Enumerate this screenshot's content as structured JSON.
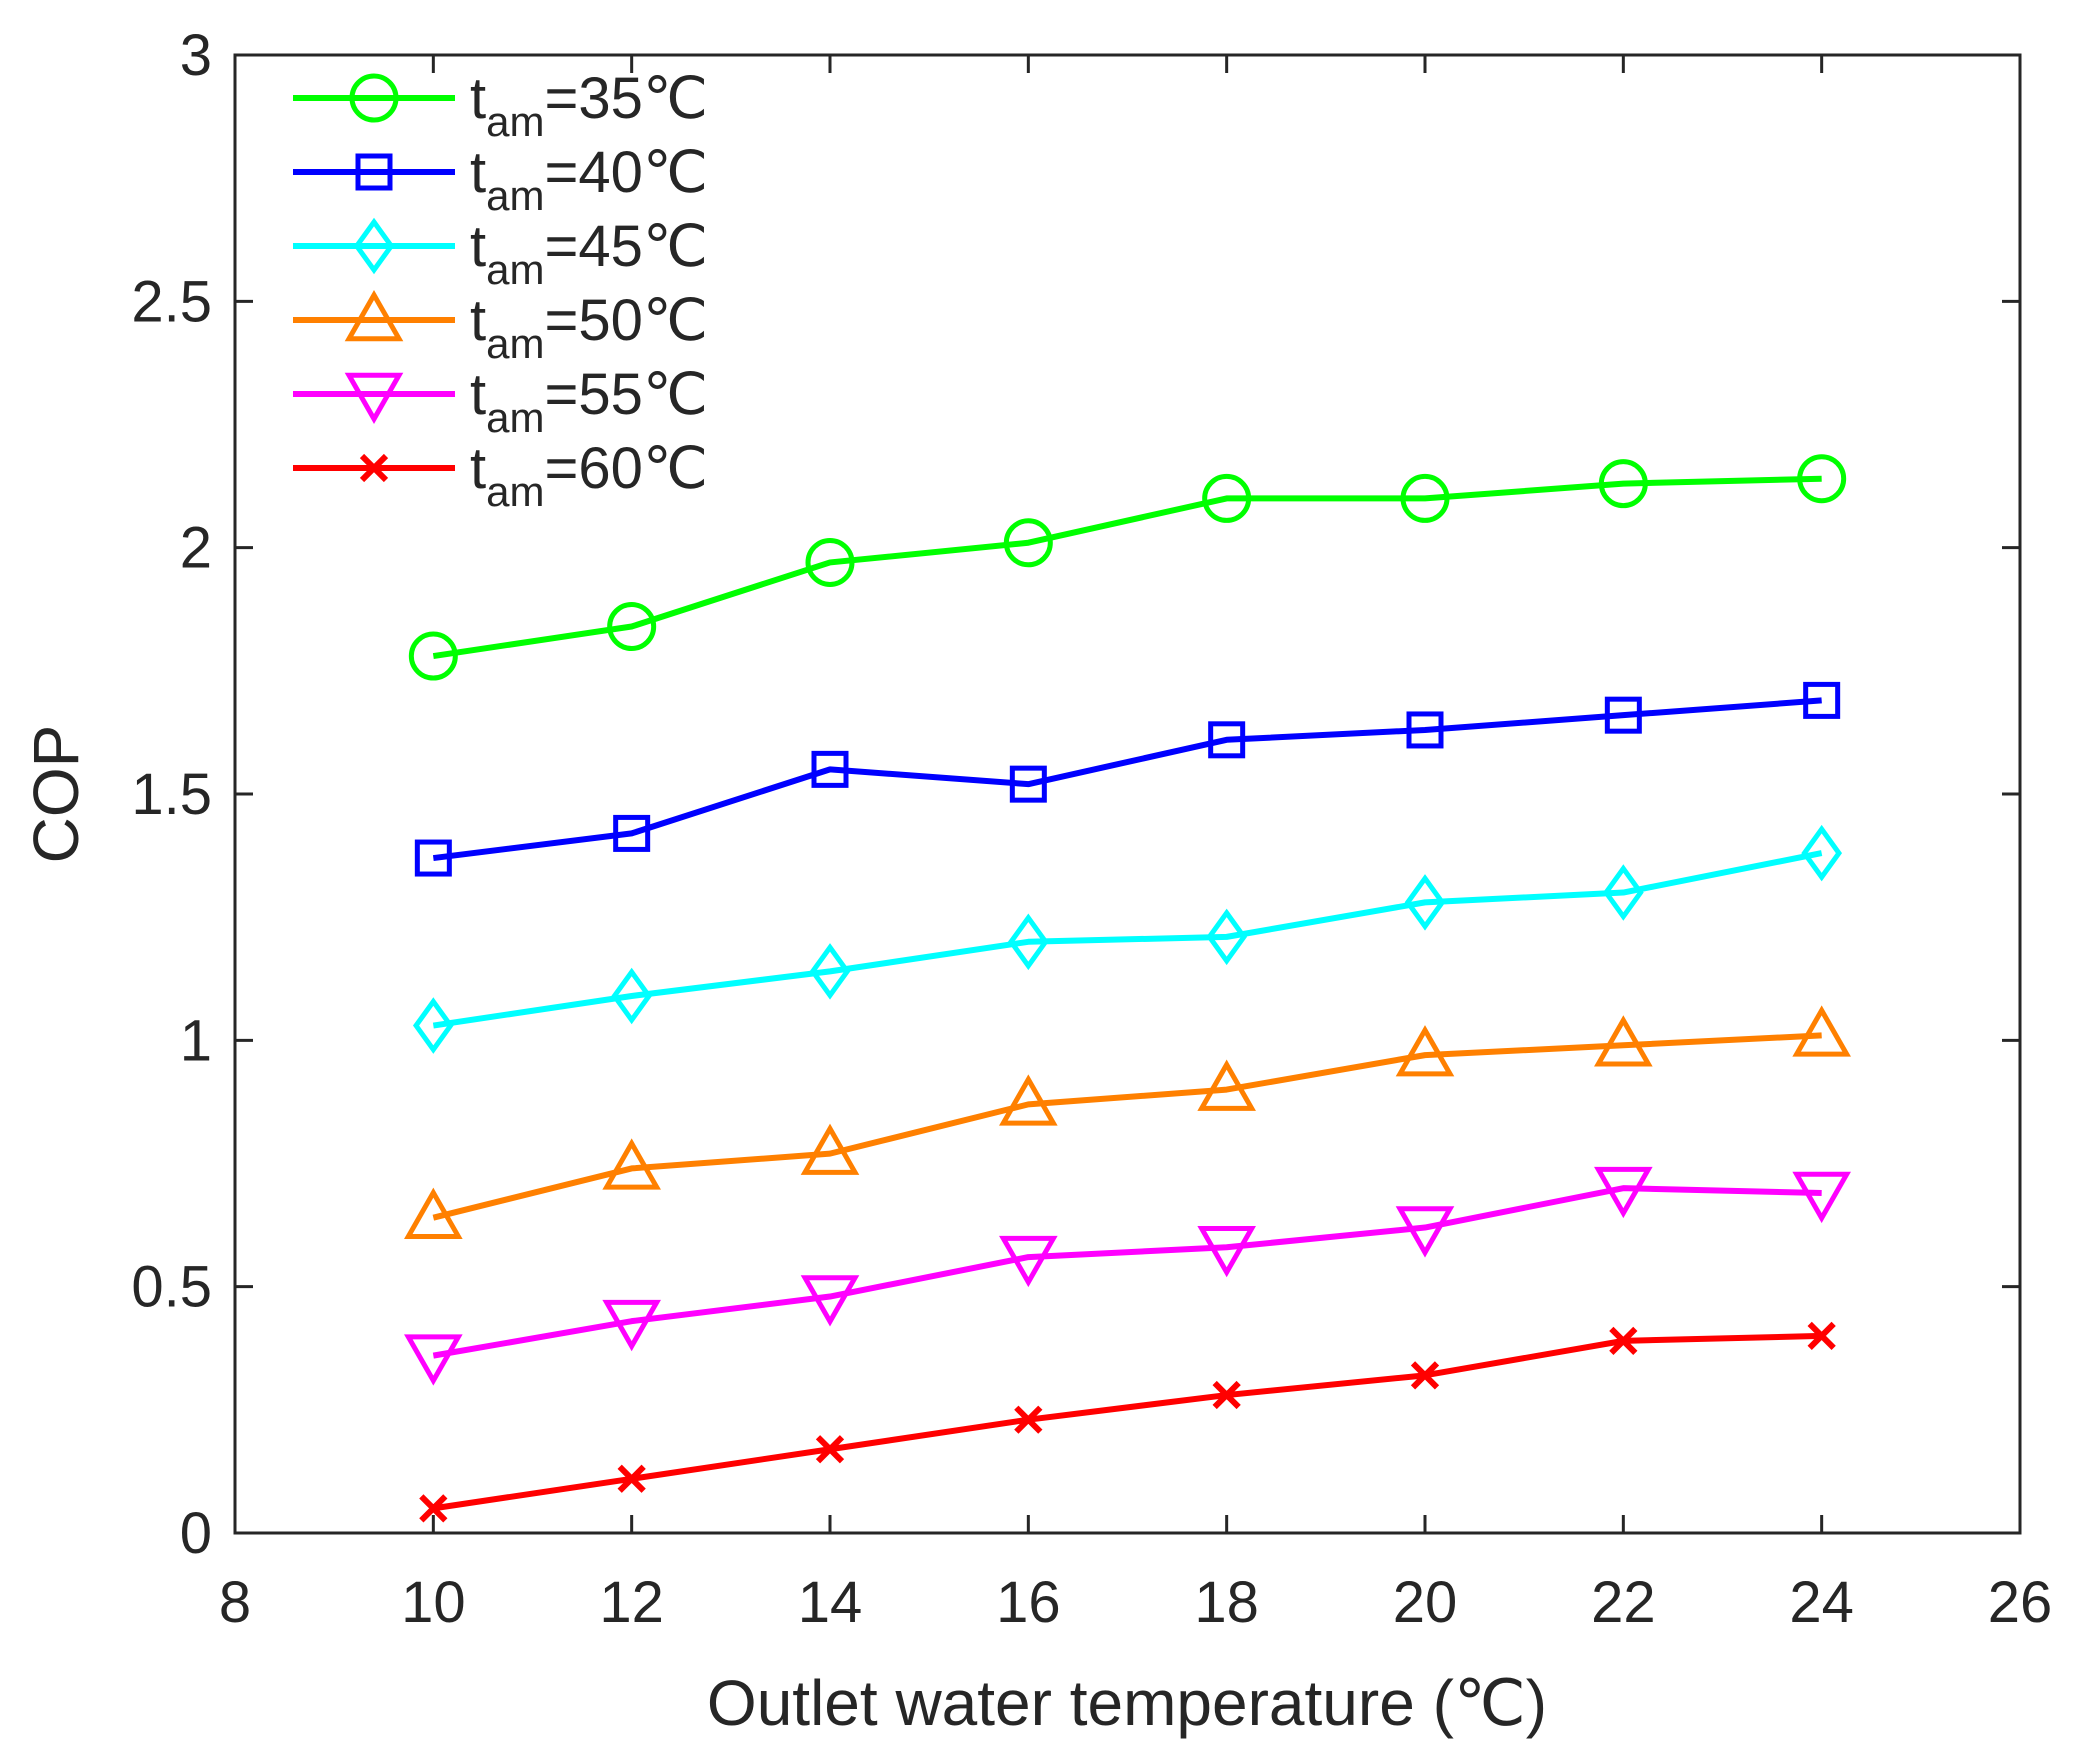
{
  "chart_data": {
    "type": "line",
    "title": "",
    "xlabel": "Outlet water temperature (℃)",
    "ylabel": "COP",
    "xlim": [
      8,
      26
    ],
    "ylim": [
      0,
      3
    ],
    "xticks": [
      8,
      10,
      12,
      14,
      16,
      18,
      20,
      22,
      24,
      26
    ],
    "yticks": [
      0,
      0.5,
      1,
      1.5,
      2,
      2.5,
      3
    ],
    "xtick_labels": [
      "8",
      "10",
      "12",
      "14",
      "16",
      "18",
      "20",
      "22",
      "24",
      "26"
    ],
    "ytick_labels": [
      "0",
      "0.5",
      "1",
      "1.5",
      "2",
      "2.5",
      "3"
    ],
    "grid": false,
    "legend_position": "top-left",
    "x": [
      10,
      12,
      14,
      16,
      18,
      20,
      22,
      24
    ],
    "series": [
      {
        "name": "t_am=35℃",
        "legend_main": "t",
        "legend_sub": "am",
        "legend_rest": "=35℃",
        "color": "#00ff00",
        "marker": "circle",
        "values": [
          1.78,
          1.84,
          1.97,
          2.01,
          2.1,
          2.1,
          2.13,
          2.14
        ]
      },
      {
        "name": "t_am=40℃",
        "legend_main": "t",
        "legend_sub": "am",
        "legend_rest": "=40℃",
        "color": "#0000ff",
        "marker": "square",
        "values": [
          1.37,
          1.42,
          1.55,
          1.52,
          1.61,
          1.63,
          1.66,
          1.69
        ]
      },
      {
        "name": "t_am=45℃",
        "legend_main": "t",
        "legend_sub": "am",
        "legend_rest": "=45℃",
        "color": "#00ffff",
        "marker": "diamond",
        "values": [
          1.03,
          1.09,
          1.14,
          1.2,
          1.21,
          1.28,
          1.3,
          1.38
        ]
      },
      {
        "name": "t_am=50℃",
        "legend_main": "t",
        "legend_sub": "am",
        "legend_rest": "=50℃",
        "color": "#ff8000",
        "marker": "triangle-up",
        "values": [
          0.64,
          0.74,
          0.77,
          0.87,
          0.9,
          0.97,
          0.99,
          1.01
        ]
      },
      {
        "name": "t_am=55℃",
        "legend_main": "t",
        "legend_sub": "am",
        "legend_rest": "=55℃",
        "color": "#ff00ff",
        "marker": "triangle-down",
        "values": [
          0.36,
          0.43,
          0.48,
          0.56,
          0.58,
          0.62,
          0.7,
          0.69
        ]
      },
      {
        "name": "t_am=60℃",
        "legend_main": "t",
        "legend_sub": "am",
        "legend_rest": "=60℃",
        "color": "#ff0000",
        "marker": "x",
        "values": [
          0.05,
          0.11,
          0.17,
          0.23,
          0.28,
          0.32,
          0.39,
          0.4
        ]
      }
    ]
  }
}
